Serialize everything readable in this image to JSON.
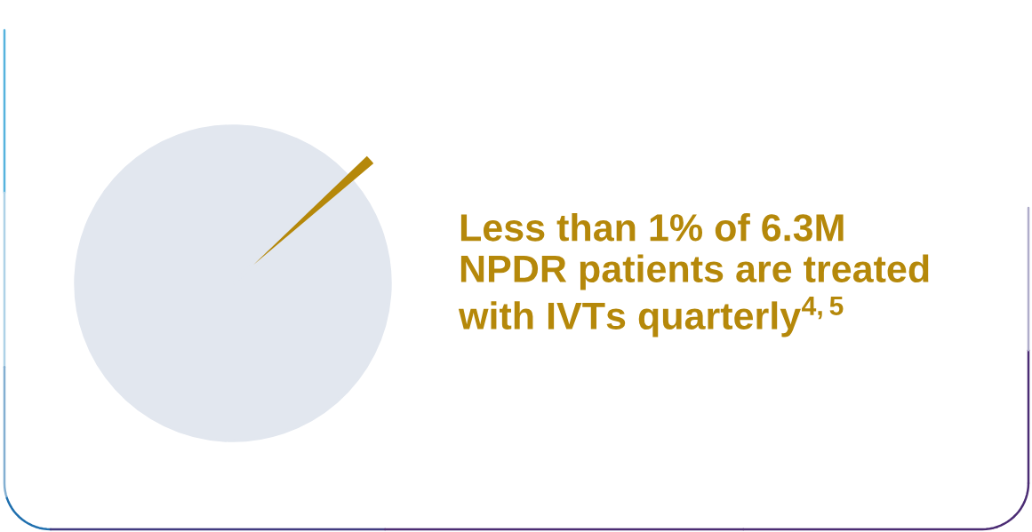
{
  "chart_data": {
    "type": "pie",
    "title": "Less than 1% of 6.3M\nNPDR patients are treated\nwith IVTs quarterly$^{4,5}$",
    "categories": [
      null,
      null
    ],
    "values": [
      1,
      99
    ],
    "colors": [
      "#b5880a",
      "#e2e7ef"
    ]
  }
}
